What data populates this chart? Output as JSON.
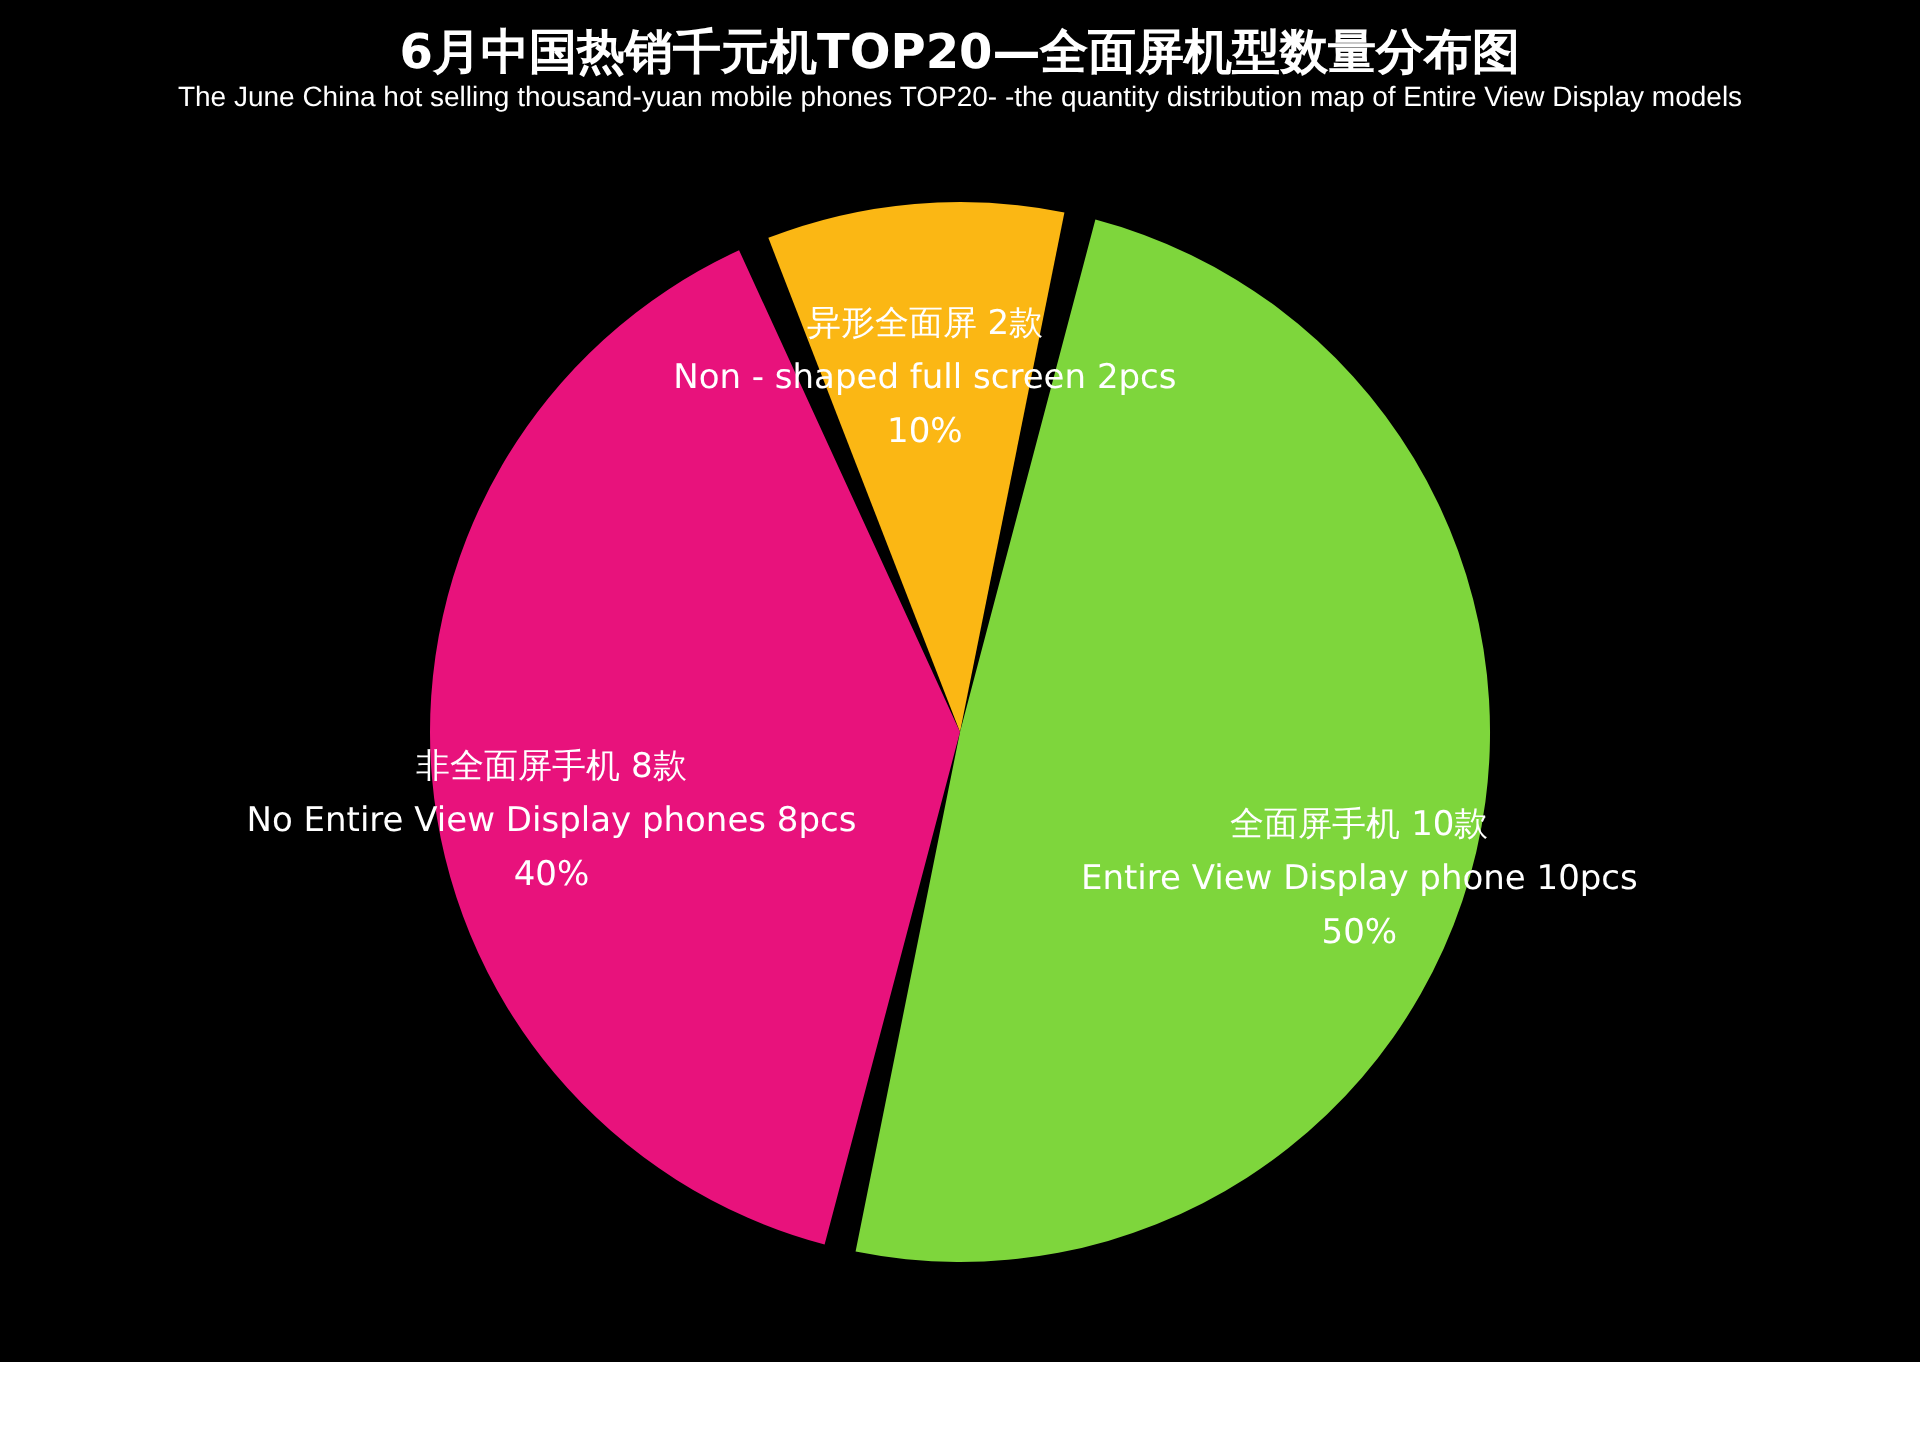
{
  "chart_data": {
    "type": "pie",
    "title": "6月中国热销千元机TOP20—全面屏机型数量分布图",
    "subtitle": "The June China hot selling thousand-yuan mobile phones TOP20- -the quantity distribution map of Entire View Display models",
    "categories": [
      "异形全面屏  2款\nNon - shaped full screen   2pcs",
      "全面屏手机 10款\nEntire View Display phone 10pcs",
      "非全面屏手机 8款\nNo Entire View Display phones 8pcs"
    ],
    "values": [
      10,
      50,
      40
    ],
    "value_labels": [
      "10%",
      "50%",
      "40%"
    ],
    "colors": [
      "#fbb714",
      "#7ed63c",
      "#e8127c"
    ],
    "legend": false
  }
}
